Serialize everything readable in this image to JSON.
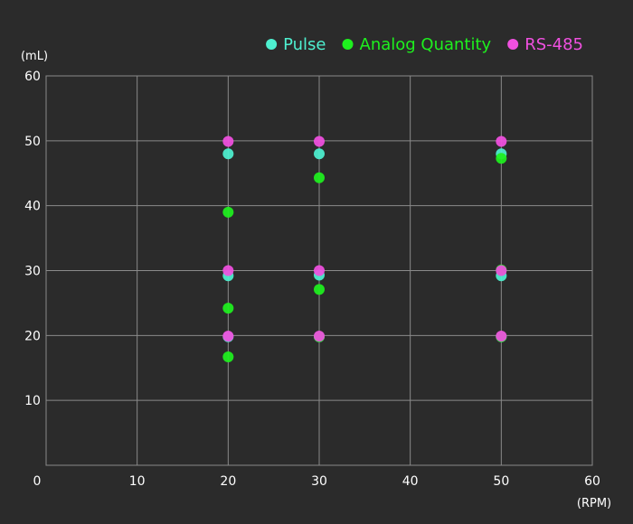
{
  "chart_data": {
    "type": "scatter",
    "title": "",
    "xlabel": "(RPM)",
    "ylabel": "(mL)",
    "xlim": [
      0,
      60
    ],
    "ylim": [
      0,
      60
    ],
    "xticks": [
      0,
      10,
      20,
      30,
      40,
      50,
      60
    ],
    "yticks": [
      10,
      20,
      30,
      40,
      50,
      60
    ],
    "grid": true,
    "legend_position": "top-right",
    "series": [
      {
        "name": "Pulse",
        "color": "#4ef0d0",
        "points": [
          [
            20,
            48
          ],
          [
            20,
            29.2
          ],
          [
            20,
            19.8
          ],
          [
            30,
            48
          ],
          [
            30,
            29.3
          ],
          [
            30,
            19.8
          ],
          [
            50,
            48
          ],
          [
            50,
            29.2
          ],
          [
            50,
            19.8
          ]
        ]
      },
      {
        "name": "Analog Quantity",
        "color": "#1ef01e",
        "points": [
          [
            20,
            39
          ],
          [
            20,
            24.2
          ],
          [
            20,
            16.7
          ],
          [
            30,
            44.3
          ],
          [
            30,
            27.1
          ],
          [
            30,
            19.8
          ],
          [
            50,
            47.3
          ],
          [
            50,
            30.1
          ],
          [
            50,
            19.8
          ]
        ]
      },
      {
        "name": "RS-485",
        "color": "#f050e0",
        "points": [
          [
            20,
            49.9
          ],
          [
            20,
            30
          ],
          [
            20,
            19.9
          ],
          [
            30,
            49.9
          ],
          [
            30,
            30
          ],
          [
            30,
            19.9
          ],
          [
            50,
            49.9
          ],
          [
            50,
            30
          ],
          [
            50,
            19.9
          ]
        ]
      }
    ]
  }
}
